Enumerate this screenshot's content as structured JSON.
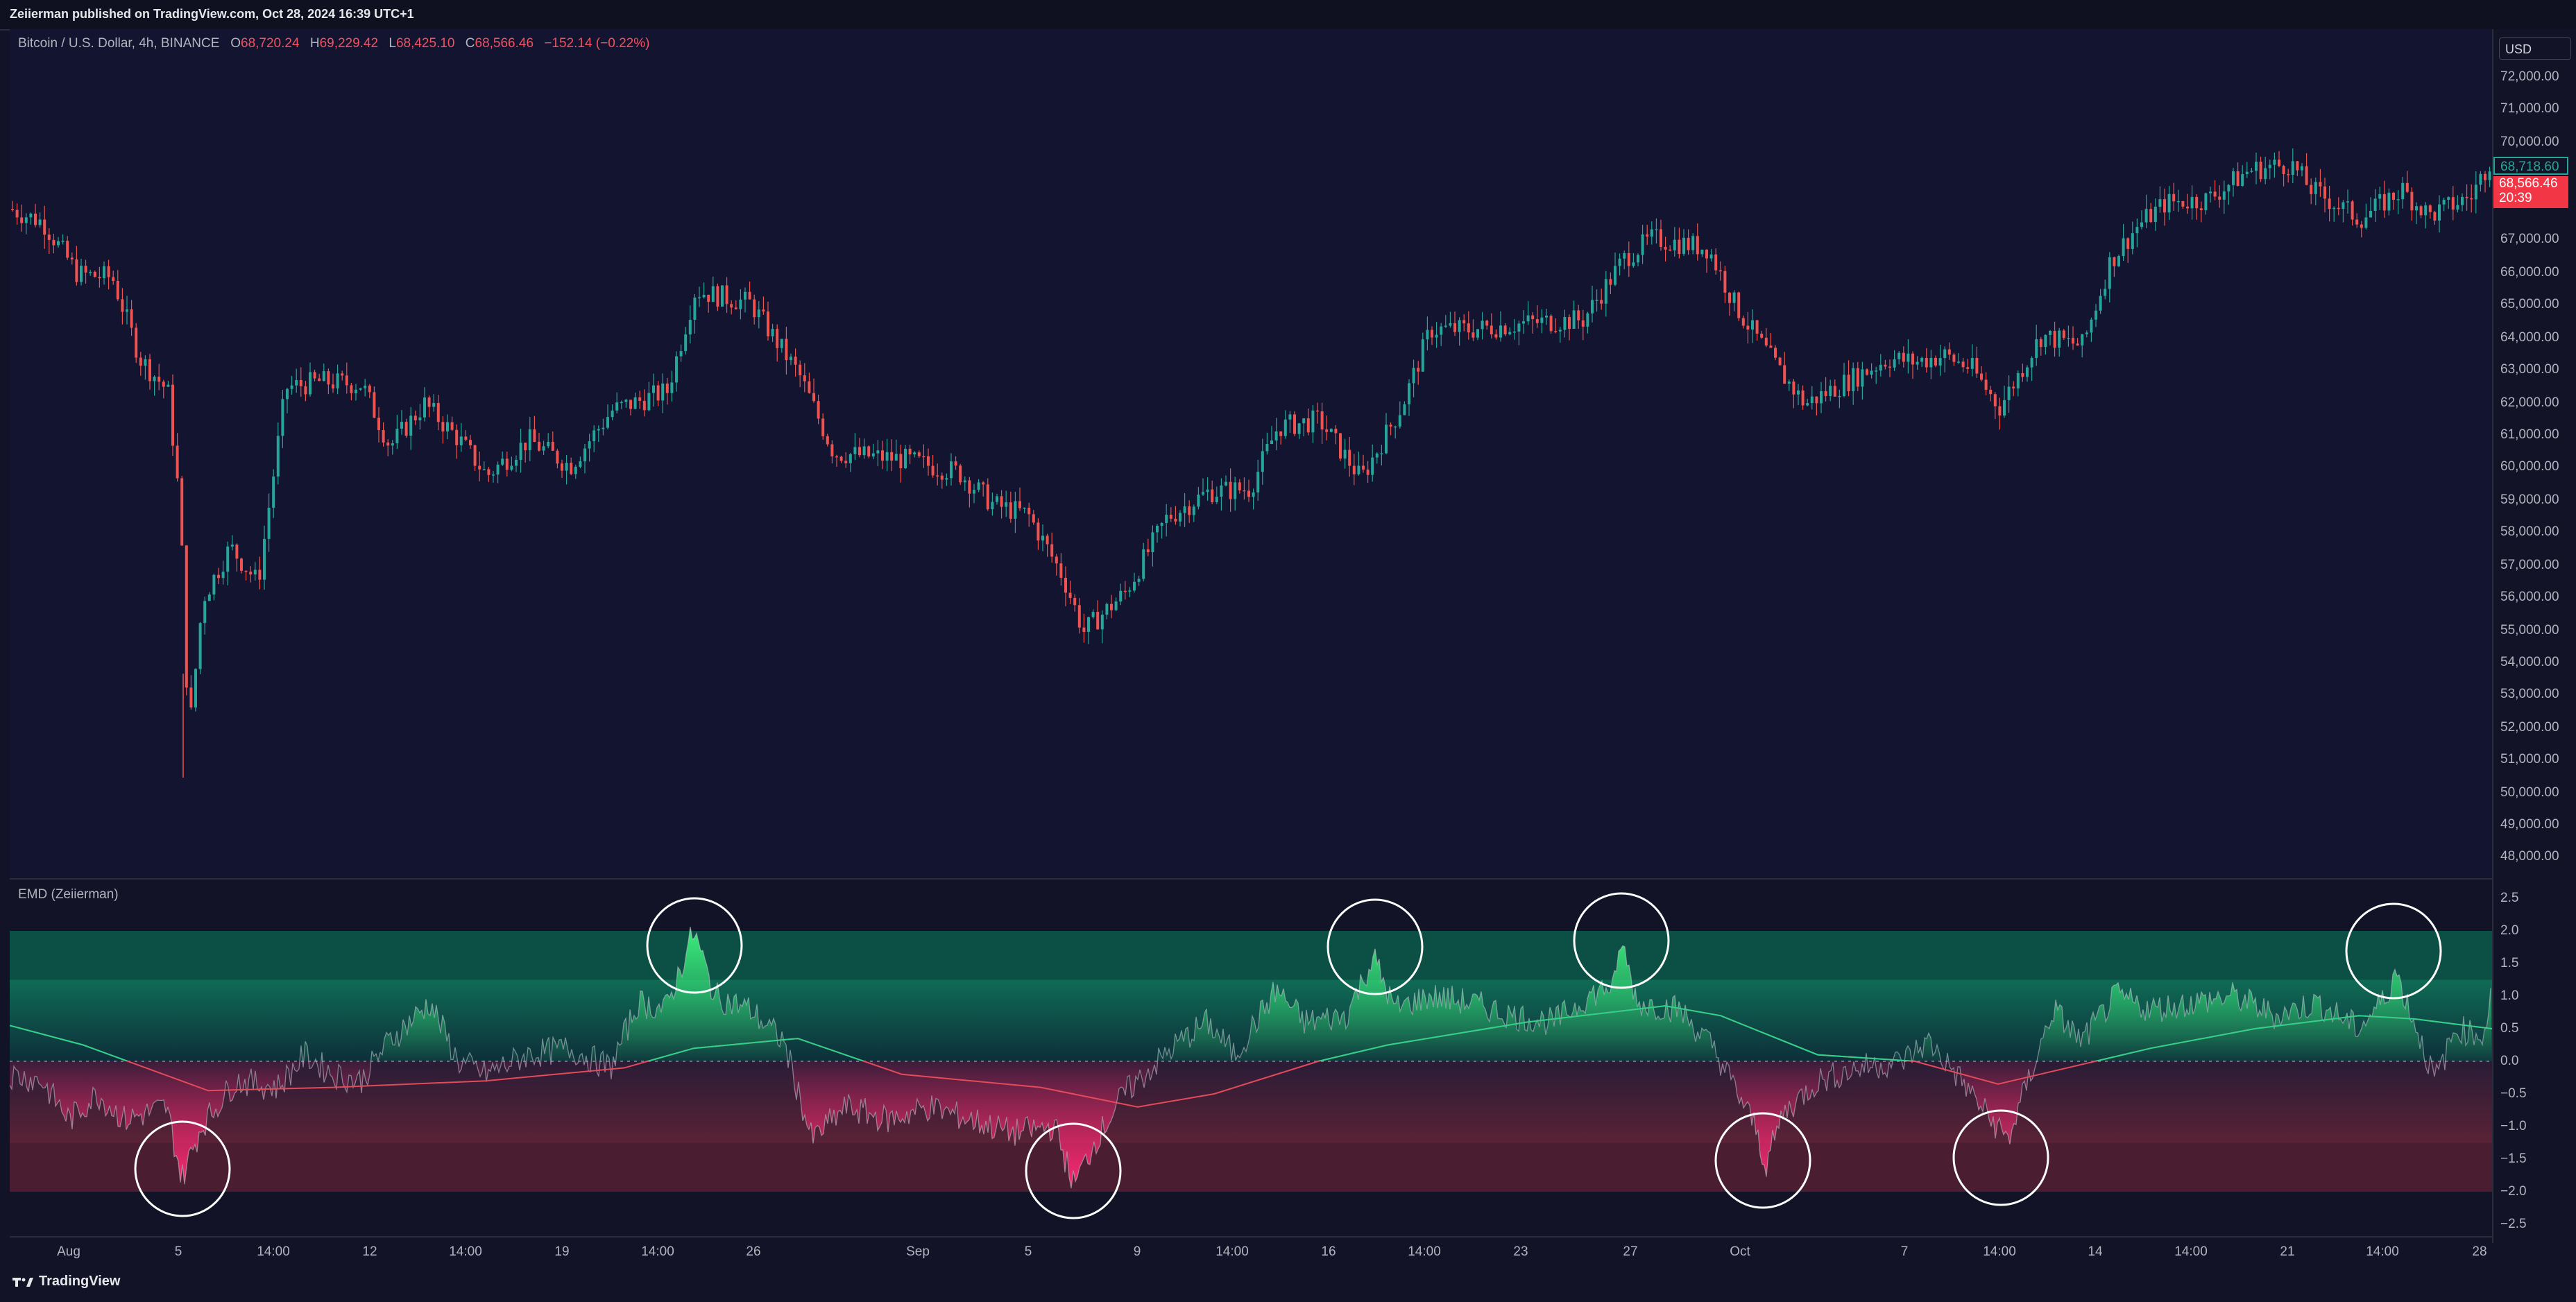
{
  "header": {
    "published": "Zeiierman published on TradingView.com, Oct 28, 2024 16:39 UTC+1"
  },
  "legend": {
    "symbol": "Bitcoin / U.S. Dollar, 4h, BINANCE",
    "o_label": "O",
    "o": "68,720.24",
    "h_label": "H",
    "h": "69,229.42",
    "l_label": "L",
    "l": "68,425.10",
    "c_label": "C",
    "c": "68,566.46",
    "change": "−152.14 (−0.22%)"
  },
  "indicator": {
    "label": "EMD (Zeiierman)"
  },
  "price_axis": {
    "currency": "USD",
    "ticks": [
      "72,000.00",
      "71,000.00",
      "70,000.00",
      "67,000.00",
      "66,000.00",
      "65,000.00",
      "64,000.00",
      "63,000.00",
      "62,000.00",
      "61,000.00",
      "60,000.00",
      "59,000.00",
      "58,000.00",
      "57,000.00",
      "56,000.00",
      "55,000.00",
      "54,000.00",
      "53,000.00",
      "52,000.00",
      "51,000.00",
      "50,000.00",
      "49,000.00",
      "48,000.00"
    ],
    "tag_top": "68,718.60",
    "tag_last": "68,566.46",
    "tag_countdown": "20:39",
    "colors": {
      "tag_top": "#26a69a",
      "tag_last": "#f23645"
    }
  },
  "indicator_axis": {
    "ticks": [
      "2.5",
      "2.0",
      "1.5",
      "1.0",
      "0.5",
      "0.0",
      "−0.5",
      "−1.0",
      "−1.5",
      "−2.0",
      "−2.5"
    ]
  },
  "time_axis": {
    "labels": [
      "Aug",
      "5",
      "14:00",
      "12",
      "14:00",
      "19",
      "14:00",
      "26",
      "Sep",
      "5",
      "9",
      "14:00",
      "16",
      "14:00",
      "23",
      "27",
      "Oct",
      "7",
      "14:00",
      "14",
      "14:00",
      "21",
      "14:00",
      "28"
    ]
  },
  "footer": {
    "brand": "TradingView",
    "logo": "tradingview-logo-icon"
  },
  "colors": {
    "up": "#26a69a",
    "down": "#ef5350",
    "osc_up": "#3cf07c",
    "osc_down": "#ff2a74",
    "band_up": "#0e5a4a",
    "band_down": "#5a1f33"
  }
}
